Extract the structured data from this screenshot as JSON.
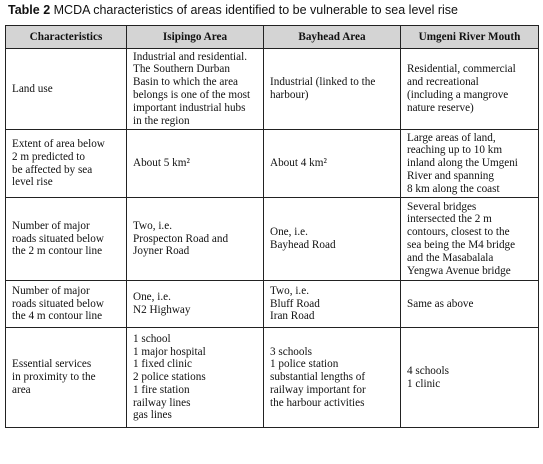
{
  "caption": {
    "label": "Table 2",
    "text": "MCDA characteristics of areas identified to be vulnerable to sea level rise"
  },
  "table": {
    "headers": [
      "Characteristics",
      "Isipingo Area",
      "Bayhead Area",
      "Umgeni River Mouth"
    ],
    "rows": [
      {
        "cells": [
          "Land use",
          "Industrial and residential.\nThe Southern Durban\nBasin to which the area\nbelongs is one of the most\nimportant industrial hubs\nin the region",
          "Industrial (linked to the\nharbour)",
          "Residential, commercial\nand recreational\n(including a mangrove\nnature reserve)"
        ]
      },
      {
        "cells": [
          "Extent of area below\n2 m predicted to\nbe affected by sea\nlevel rise",
          "About 5 km²",
          "About 4 km²",
          "Large areas of land,\nreaching up to 10 km\ninland along the Umgeni\nRiver and spanning\n8 km along the coast"
        ]
      },
      {
        "cells": [
          "Number of major\nroads situated below\nthe 2 m contour line",
          "Two, i.e.\nProspecton Road and\nJoyner Road",
          "One, i.e.\nBayhead Road",
          "Several bridges\nintersected the 2 m\ncontours, closest to the\nsea being the M4 bridge\nand the Masabalala\nYengwa Avenue bridge"
        ]
      },
      {
        "cells": [
          "Number of major\nroads situated below\nthe 4 m contour line",
          "One, i.e.\nN2 Highway",
          "Two, i.e.\nBluff Road\nIran Road",
          "Same as above"
        ]
      },
      {
        "cells": [
          "Essential services\nin proximity to the\narea",
          "1 school\n1 major hospital\n1 fixed clinic\n2 police stations\n1 fire station\nrailway lines\ngas lines",
          "3 schools\n1 police station\nsubstantial lengths of\nrailway important for\nthe harbour activities",
          "4 schools\n1 clinic"
        ]
      }
    ]
  }
}
